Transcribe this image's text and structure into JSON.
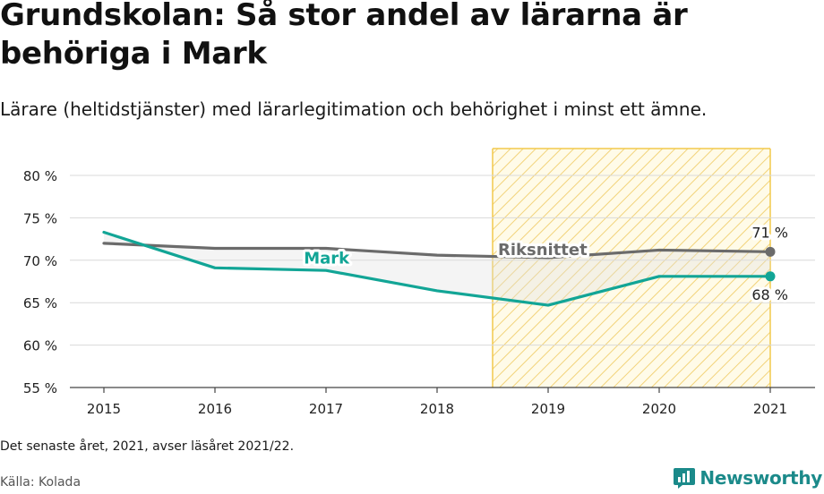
{
  "title": "Grundskolan: Så stor andel av lärarna är behöriga i Mark",
  "subtitle": "Lärare (heltidstjänster) med lärarlegitimation och behörighet i minst ett ämne.",
  "footnote": "Det senaste året, 2021, avser läsåret 2021/22.",
  "source": "Källa: Kolada",
  "brand": {
    "name": "Newsworthy",
    "icon": "newsworthy-logo-icon",
    "color": "#1b8a8a"
  },
  "chart_data": {
    "type": "line",
    "x": [
      2015,
      2016,
      2017,
      2018,
      2019,
      2020,
      2021
    ],
    "ylim": [
      55,
      80
    ],
    "yticks": [
      55,
      60,
      65,
      70,
      75,
      80
    ],
    "ytick_suffix": " %",
    "grid": true,
    "highlight_range": [
      2018.5,
      2021
    ],
    "highlight_color": "#f5c518",
    "series": [
      {
        "name": "Riksnittet",
        "color": "#6b6b6b",
        "values": [
          72.0,
          71.4,
          71.4,
          70.6,
          70.3,
          71.2,
          71.0
        ],
        "end_label": "71 %"
      },
      {
        "name": "Mark",
        "color": "#12a596",
        "values": [
          73.3,
          69.1,
          68.8,
          66.4,
          64.7,
          68.1,
          68.1
        ],
        "end_label": "68 %"
      }
    ]
  }
}
